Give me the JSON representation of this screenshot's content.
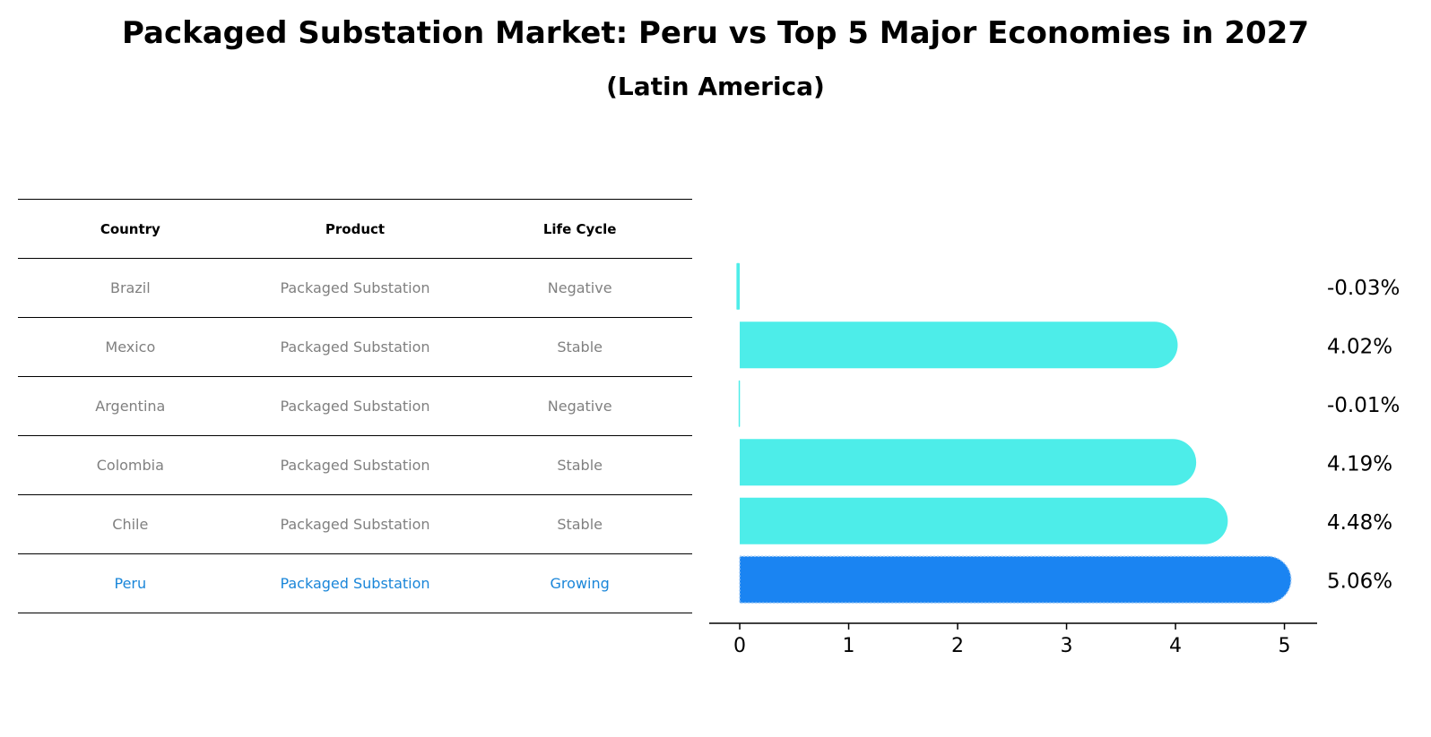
{
  "title": "Packaged Substation Market: Peru vs Top 5 Major Economies in 2027",
  "subtitle": "(Latin America)",
  "table": {
    "headers": [
      "Country",
      "Product",
      "Life Cycle"
    ],
    "rows": [
      {
        "country": "Brazil",
        "product": "Packaged Substation",
        "life_cycle": "Negative"
      },
      {
        "country": "Mexico",
        "product": "Packaged Substation",
        "life_cycle": "Stable"
      },
      {
        "country": "Argentina",
        "product": "Packaged Substation",
        "life_cycle": "Negative"
      },
      {
        "country": "Colombia",
        "product": "Packaged Substation",
        "life_cycle": "Stable"
      },
      {
        "country": "Chile",
        "product": "Packaged Substation",
        "life_cycle": "Stable"
      },
      {
        "country": "Peru",
        "product": "Packaged Substation",
        "life_cycle": "Growing"
      }
    ],
    "highlight_color": "#1a86d9",
    "text_color": "#808080"
  },
  "chart_data": {
    "type": "bar",
    "orientation": "horizontal",
    "categories": [
      "Brazil",
      "Mexico",
      "Argentina",
      "Colombia",
      "Chile",
      "Peru"
    ],
    "values": [
      -0.03,
      4.02,
      -0.01,
      4.19,
      4.48,
      5.06
    ],
    "value_labels": [
      "-0.03%",
      "4.02%",
      "-0.01%",
      "4.19%",
      "4.48%",
      "5.06%"
    ],
    "xticks": [
      0,
      1,
      2,
      3,
      4,
      5
    ],
    "xlim": [
      -0.28,
      5.3
    ],
    "grid": false,
    "colors": {
      "default": "#4dede9",
      "highlight": "#1a84f2"
    },
    "highlight_category": "Peru"
  }
}
